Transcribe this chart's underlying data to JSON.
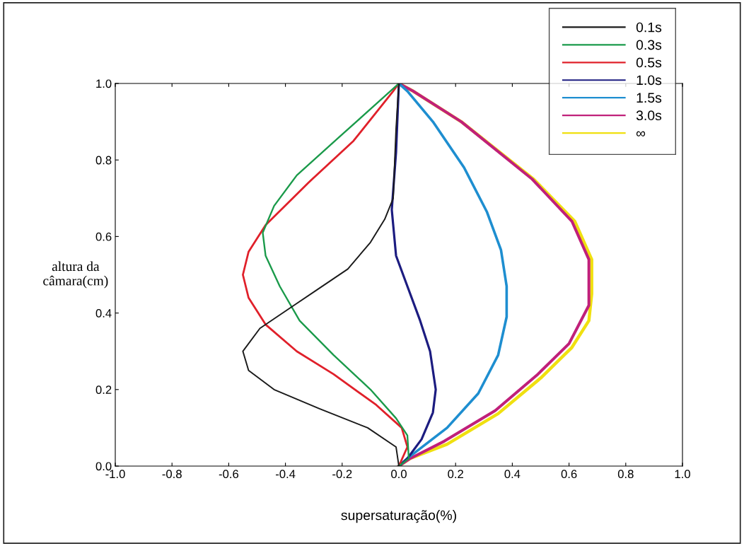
{
  "chart_data": {
    "type": "line",
    "xlabel": "supersaturação(%)",
    "ylabel": "altura da\ncâmara(cm)",
    "xlim": [
      -1.0,
      1.0
    ],
    "xticks": [
      {
        "value": -1,
        "label": "-1.0"
      },
      -0.8,
      -0.6,
      -0.4,
      -0.2,
      {
        "value": 0,
        "label": "0.0"
      },
      0.2,
      0.4,
      0.6,
      0.8,
      {
        "value": 1,
        "label": "1.0"
      }
    ],
    "ylim": [
      0.0,
      1.0
    ],
    "yticks": [
      {
        "value": 0,
        "label": "0.0"
      },
      0.2,
      0.4,
      0.6,
      0.8,
      {
        "value": 1,
        "label": "1.0"
      }
    ],
    "grid": false,
    "legend": "top right",
    "marker": "none",
    "line_style": "solid",
    "series": [
      {
        "name": "0.1s",
        "color": "#1a1a1a",
        "x": [
          0.0,
          -0.01,
          -0.02,
          -0.05,
          -0.1,
          -0.18,
          -0.29,
          -0.37,
          -0.49,
          -0.55,
          -0.53,
          -0.44,
          -0.28,
          -0.11,
          -0.01,
          0.0
        ],
        "values": [
          1.0,
          0.88,
          0.7,
          0.645,
          0.585,
          0.515,
          0.46,
          0.42,
          0.36,
          0.3,
          0.25,
          0.2,
          0.15,
          0.1,
          0.05,
          0.0
        ]
      },
      {
        "name": "0.3s",
        "color": "#1a9a4a",
        "x": [
          0.0,
          -0.03,
          -0.21,
          -0.36,
          -0.44,
          -0.48,
          -0.47,
          -0.42,
          -0.35,
          -0.23,
          -0.1,
          -0.01,
          0.03,
          0.035,
          0.0
        ],
        "values": [
          1.0,
          0.98,
          0.86,
          0.76,
          0.68,
          0.61,
          0.55,
          0.47,
          0.38,
          0.29,
          0.2,
          0.125,
          0.08,
          0.02,
          0.0
        ]
      },
      {
        "name": "0.5s",
        "color": "#e0202a",
        "x": [
          0.0,
          -0.02,
          -0.16,
          -0.32,
          -0.47,
          -0.53,
          -0.55,
          -0.53,
          -0.47,
          -0.36,
          -0.23,
          -0.08,
          0.01,
          0.03,
          0.0
        ],
        "values": [
          1.0,
          0.98,
          0.85,
          0.74,
          0.63,
          0.56,
          0.5,
          0.44,
          0.37,
          0.3,
          0.24,
          0.16,
          0.1,
          0.05,
          0.0
        ]
      },
      {
        "name": "1.0s",
        "color": "#1c1c80",
        "x": [
          0.0,
          -0.01,
          -0.02,
          -0.025,
          -0.01,
          0.03,
          0.075,
          0.11,
          0.13,
          0.12,
          0.08,
          0.03,
          0.0
        ],
        "values": [
          1.0,
          0.82,
          0.72,
          0.67,
          0.55,
          0.47,
          0.38,
          0.3,
          0.2,
          0.14,
          0.07,
          0.02,
          0.0
        ]
      },
      {
        "name": "1.5s",
        "color": "#1e8ed0",
        "x": [
          0.0,
          0.03,
          0.12,
          0.23,
          0.31,
          0.36,
          0.38,
          0.38,
          0.35,
          0.28,
          0.17,
          0.03,
          0.0
        ],
        "values": [
          1.0,
          0.98,
          0.9,
          0.78,
          0.665,
          0.565,
          0.47,
          0.39,
          0.29,
          0.19,
          0.1,
          0.02,
          0.0
        ]
      },
      {
        "name": "3.0s",
        "color": "#c0207a",
        "x": [
          0.0,
          0.05,
          0.22,
          0.47,
          0.61,
          0.67,
          0.67,
          0.6,
          0.49,
          0.34,
          0.16,
          0.04,
          0.0
        ],
        "values": [
          1.0,
          0.98,
          0.9,
          0.75,
          0.64,
          0.54,
          0.42,
          0.32,
          0.24,
          0.145,
          0.065,
          0.02,
          0.0
        ]
      },
      {
        "name": "∞",
        "color": "#f0e010",
        "x": [
          0.0,
          0.05,
          0.22,
          0.475,
          0.62,
          0.68,
          0.68,
          0.67,
          0.61,
          0.5,
          0.35,
          0.17,
          0.04,
          0.0
        ],
        "values": [
          1.0,
          0.98,
          0.9,
          0.75,
          0.64,
          0.54,
          0.45,
          0.38,
          0.31,
          0.23,
          0.137,
          0.057,
          0.02,
          0.0
        ]
      }
    ]
  }
}
